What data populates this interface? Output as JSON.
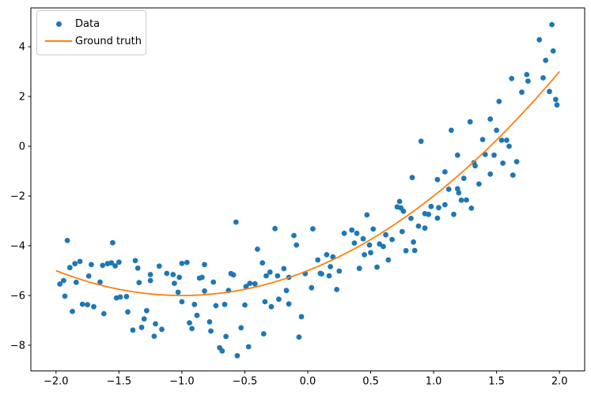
{
  "figure": {
    "background": "#ffffff",
    "legend": {
      "position": "upper-left",
      "items": [
        {
          "label": "Data",
          "marker": "dot",
          "color": "#1f77b4"
        },
        {
          "label": "Ground truth",
          "marker": "line",
          "color": "#ff7f0e"
        }
      ]
    }
  },
  "chart_data": {
    "type": "scatter",
    "title": "",
    "xlabel": "",
    "ylabel": "",
    "grid": false,
    "legend_position": "upper left",
    "xlim": [
      -2.2,
      2.2
    ],
    "ylim": [
      -9.03,
      5.56
    ],
    "x_ticks": [
      -2.0,
      -1.5,
      -1.0,
      -0.5,
      0.0,
      0.5,
      1.0,
      1.5,
      2.0
    ],
    "x_tick_labels": [
      "−2.0",
      "−1.5",
      "−1.0",
      "−0.5",
      "0.0",
      "0.5",
      "1.0",
      "1.5",
      "2.0"
    ],
    "y_ticks": [
      -8,
      -6,
      -4,
      -2,
      0,
      2,
      4
    ],
    "y_tick_labels": [
      "−8",
      "−6",
      "−4",
      "−2",
      "0",
      "2",
      "4"
    ],
    "series": [
      {
        "name": "Data",
        "type": "scatter",
        "color": "#1f77b4",
        "marker_radius": 3.4,
        "points": [
          [
            -1.97,
            -5.54
          ],
          [
            -1.94,
            -5.4
          ],
          [
            -1.93,
            -6.03
          ],
          [
            -1.91,
            -3.79
          ],
          [
            -1.89,
            -4.88
          ],
          [
            -1.87,
            -6.64
          ],
          [
            -1.85,
            -4.72
          ],
          [
            -1.84,
            -5.47
          ],
          [
            -1.81,
            -4.63
          ],
          [
            -1.79,
            -6.35
          ],
          [
            -1.75,
            -6.37
          ],
          [
            -1.74,
            -5.22
          ],
          [
            -1.72,
            -4.76
          ],
          [
            -1.7,
            -6.45
          ],
          [
            -1.65,
            -5.46
          ],
          [
            -1.63,
            -4.79
          ],
          [
            -1.62,
            -6.73
          ],
          [
            -1.59,
            -4.72
          ],
          [
            -1.56,
            -4.69
          ],
          [
            -1.55,
            -3.88
          ],
          [
            -1.53,
            -4.81
          ],
          [
            -1.52,
            -6.1
          ],
          [
            -1.5,
            -4.66
          ],
          [
            -1.49,
            -6.06
          ],
          [
            -1.44,
            -6.04
          ],
          [
            -1.43,
            -6.66
          ],
          [
            -1.39,
            -7.39
          ],
          [
            -1.37,
            -4.6
          ],
          [
            -1.35,
            -4.9
          ],
          [
            -1.34,
            -5.48
          ],
          [
            -1.32,
            -7.28
          ],
          [
            -1.3,
            -6.94
          ],
          [
            -1.28,
            -6.61
          ],
          [
            -1.25,
            -5.16
          ],
          [
            -1.25,
            -5.4
          ],
          [
            -1.22,
            -7.64
          ],
          [
            -1.21,
            -7.14
          ],
          [
            -1.18,
            -4.82
          ],
          [
            -1.16,
            -7.36
          ],
          [
            -1.12,
            -5.11
          ],
          [
            -1.07,
            -5.16
          ],
          [
            -1.06,
            -5.51
          ],
          [
            -1.03,
            -5.87
          ],
          [
            -1.02,
            -5.27
          ],
          [
            -1.0,
            -4.71
          ],
          [
            -1.0,
            -6.25
          ],
          [
            -0.96,
            -4.67
          ],
          [
            -0.94,
            -7.1
          ],
          [
            -0.92,
            -7.33
          ],
          [
            -0.9,
            -6.36
          ],
          [
            -0.88,
            -6.8
          ],
          [
            -0.86,
            -5.3
          ],
          [
            -0.84,
            -5.27
          ],
          [
            -0.82,
            -4.76
          ],
          [
            -0.82,
            -5.82
          ],
          [
            -0.78,
            -7.06
          ],
          [
            -0.77,
            -7.43
          ],
          [
            -0.75,
            -5.46
          ],
          [
            -0.73,
            -6.41
          ],
          [
            -0.7,
            -8.1
          ],
          [
            -0.68,
            -8.23
          ],
          [
            -0.66,
            -6.36
          ],
          [
            -0.65,
            -7.65
          ],
          [
            -0.63,
            -5.8
          ],
          [
            -0.61,
            -5.12
          ],
          [
            -0.59,
            -5.17
          ],
          [
            -0.57,
            -3.05
          ],
          [
            -0.56,
            -8.42
          ],
          [
            -0.53,
            -7.3
          ],
          [
            -0.5,
            -6.38
          ],
          [
            -0.49,
            -5.64
          ],
          [
            -0.47,
            -8.06
          ],
          [
            -0.46,
            -5.51
          ],
          [
            -0.42,
            -5.53
          ],
          [
            -0.4,
            -4.14
          ],
          [
            -0.36,
            -4.69
          ],
          [
            -0.35,
            -7.54
          ],
          [
            -0.34,
            -6.25
          ],
          [
            -0.33,
            -5.21
          ],
          [
            -0.3,
            -5.06
          ],
          [
            -0.29,
            -6.45
          ],
          [
            -0.26,
            -3.31
          ],
          [
            -0.24,
            -5.21
          ],
          [
            -0.23,
            -6.15
          ],
          [
            -0.19,
            -4.92
          ],
          [
            -0.17,
            -5.8
          ],
          [
            -0.15,
            -5.27
          ],
          [
            -0.15,
            -6.34
          ],
          [
            -0.11,
            -3.59
          ],
          [
            -0.09,
            -3.97
          ],
          [
            -0.07,
            -7.67
          ],
          [
            -0.05,
            -6.85
          ],
          [
            -0.02,
            -5.12
          ],
          [
            0.03,
            -5.69
          ],
          [
            0.04,
            -3.32
          ],
          [
            0.08,
            -4.57
          ],
          [
            0.1,
            -5.11
          ],
          [
            0.11,
            -5.13
          ],
          [
            0.15,
            -4.36
          ],
          [
            0.17,
            -5.21
          ],
          [
            0.18,
            -4.84
          ],
          [
            0.2,
            -4.45
          ],
          [
            0.23,
            -5.76
          ],
          [
            0.25,
            -5.02
          ],
          [
            0.29,
            -3.5
          ],
          [
            0.35,
            -3.37
          ],
          [
            0.37,
            -3.89
          ],
          [
            0.39,
            -3.5
          ],
          [
            0.41,
            -4.91
          ],
          [
            0.44,
            -3.72
          ],
          [
            0.45,
            -4.36
          ],
          [
            0.47,
            -2.76
          ],
          [
            0.49,
            -3.97
          ],
          [
            0.5,
            -4.28
          ],
          [
            0.52,
            -3.33
          ],
          [
            0.55,
            -4.86
          ],
          [
            0.57,
            -3.93
          ],
          [
            0.6,
            -4.03
          ],
          [
            0.62,
            -3.56
          ],
          [
            0.64,
            -4.57
          ],
          [
            0.67,
            -3.75
          ],
          [
            0.71,
            -2.44
          ],
          [
            0.73,
            -2.22
          ],
          [
            0.74,
            -2.48
          ],
          [
            0.75,
            -3.43
          ],
          [
            0.76,
            -2.61
          ],
          [
            0.78,
            -4.2
          ],
          [
            0.82,
            -2.9
          ],
          [
            0.83,
            -1.26
          ],
          [
            0.84,
            -3.85
          ],
          [
            0.85,
            -4.19
          ],
          [
            0.88,
            -3.21
          ],
          [
            0.9,
            0.2
          ],
          [
            0.93,
            -2.71
          ],
          [
            0.93,
            -3.29
          ],
          [
            0.96,
            -2.74
          ],
          [
            0.98,
            -2.42
          ],
          [
            1.03,
            -1.34
          ],
          [
            1.03,
            -2.89
          ],
          [
            1.04,
            -2.47
          ],
          [
            1.09,
            -1.03
          ],
          [
            1.09,
            -2.35
          ],
          [
            1.12,
            -1.73
          ],
          [
            1.14,
            0.64
          ],
          [
            1.16,
            -2.74
          ],
          [
            1.19,
            -0.36
          ],
          [
            1.19,
            -1.71
          ],
          [
            1.2,
            -1.87
          ],
          [
            1.22,
            -2.17
          ],
          [
            1.24,
            -1.29
          ],
          [
            1.26,
            -2.16
          ],
          [
            1.29,
            0.98
          ],
          [
            1.3,
            -2.49
          ],
          [
            1.32,
            -0.66
          ],
          [
            1.33,
            -0.79
          ],
          [
            1.36,
            -1.52
          ],
          [
            1.39,
            0.27
          ],
          [
            1.41,
            -0.33
          ],
          [
            1.45,
            -1.12
          ],
          [
            1.45,
            1.09
          ],
          [
            1.48,
            -0.36
          ],
          [
            1.5,
            0.64
          ],
          [
            1.52,
            1.8
          ],
          [
            1.54,
            0.24
          ],
          [
            1.55,
            -0.68
          ],
          [
            1.58,
            0.24
          ],
          [
            1.6,
            0.0
          ],
          [
            1.62,
            2.72
          ],
          [
            1.63,
            -1.16
          ],
          [
            1.66,
            -0.62
          ],
          [
            1.7,
            2.17
          ],
          [
            1.74,
            2.88
          ],
          [
            1.75,
            2.62
          ],
          [
            1.84,
            4.28
          ],
          [
            1.87,
            2.75
          ],
          [
            1.89,
            3.45
          ],
          [
            1.92,
            2.2
          ],
          [
            1.94,
            4.89
          ],
          [
            1.95,
            3.83
          ],
          [
            1.97,
            1.88
          ],
          [
            1.98,
            1.66
          ]
        ]
      },
      {
        "name": "Ground truth",
        "type": "line",
        "color": "#ff7f0e",
        "line_width": 1.8,
        "function": "y = x^2 + 2x - 5",
        "coefficients": [
          1,
          2,
          -5
        ],
        "x_range": [
          -2,
          2
        ]
      }
    ]
  }
}
